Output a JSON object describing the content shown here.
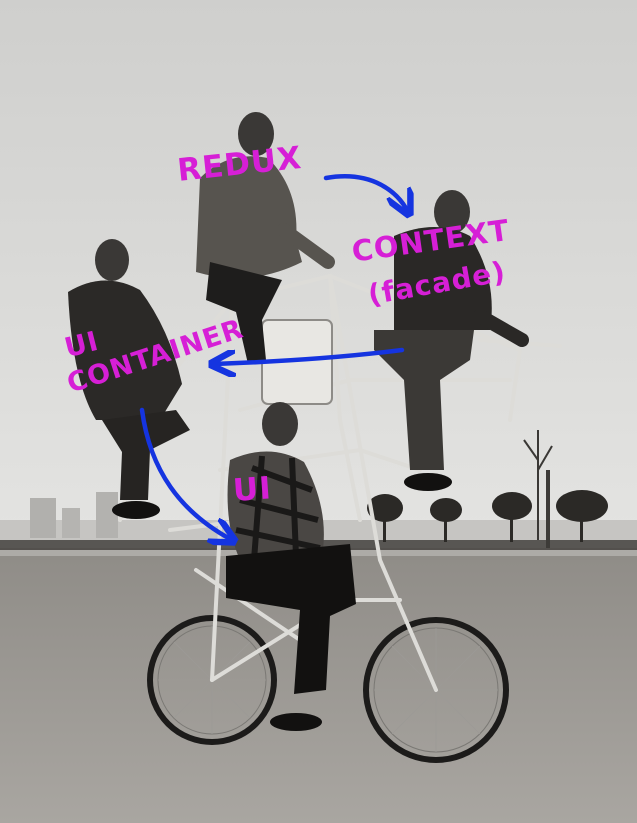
{
  "annotations": {
    "redux": "Redux",
    "context": "Context",
    "facade": "(facade)",
    "ui_container_line1": "UI",
    "ui_container_line2": "Container",
    "ui": "UI"
  },
  "colors": {
    "label": "#d61fd6",
    "arrow": "#1534e0",
    "sky": "#d8d8d6",
    "ground": "#a09d98"
  }
}
